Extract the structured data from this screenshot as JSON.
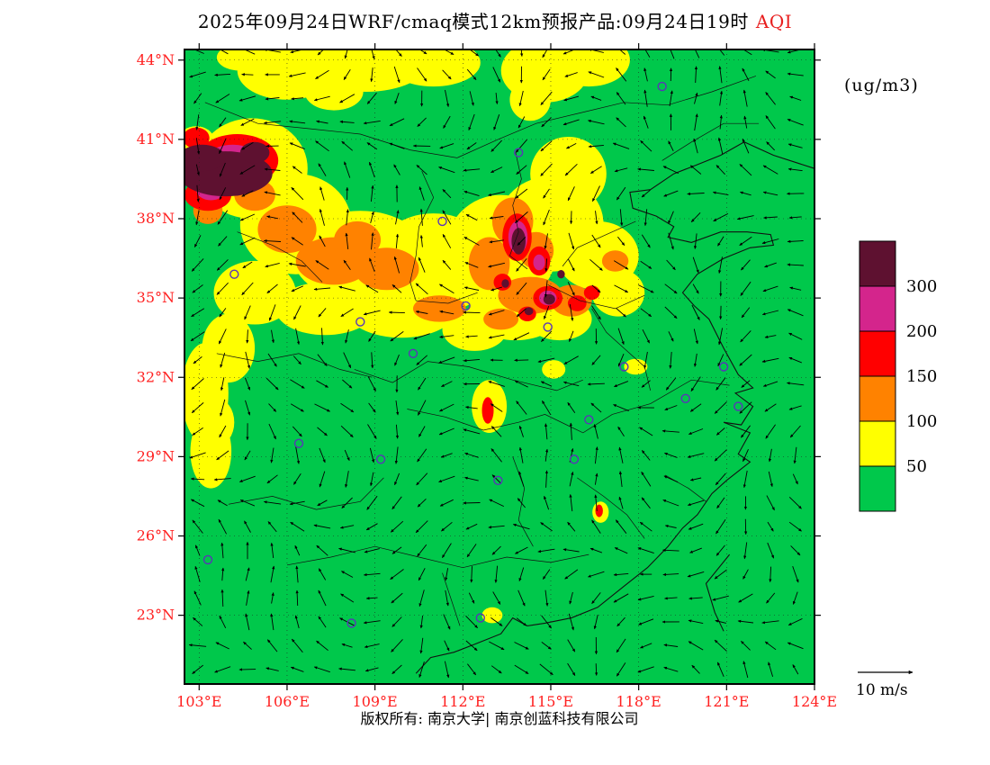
{
  "title": {
    "main": "2025年09月24日WRF/cmaq模式12km预报产品:09月24日19时",
    "highlight": "AQI"
  },
  "units_label": "(ug/m3)",
  "footer": "版权所有: 南京大学| 南京创蓝科技有限公司",
  "chart_data": {
    "type": "heatmap",
    "title": "2025年09月24日WRF/cmaq模式12km预报产品:09月24日19时 AQI",
    "variable": "AQI",
    "units": "ug/m3",
    "run_date": "2025年09月24日",
    "valid_time": "09月24日19时",
    "model": "WRF/cmaq 12km",
    "lon_range": [
      102.5,
      124.0
    ],
    "lat_range": [
      20.4,
      44.4
    ],
    "lon_ticks": [
      {
        "label": "103°E",
        "value": 103
      },
      {
        "label": "106°E",
        "value": 106
      },
      {
        "label": "109°E",
        "value": 109
      },
      {
        "label": "112°E",
        "value": 112
      },
      {
        "label": "115°E",
        "value": 115
      },
      {
        "label": "118°E",
        "value": 118
      },
      {
        "label": "121°E",
        "value": 121
      },
      {
        "label": "124°E",
        "value": 124
      }
    ],
    "lat_ticks": [
      {
        "label": "44°N",
        "value": 44
      },
      {
        "label": "41°N",
        "value": 41
      },
      {
        "label": "38°N",
        "value": 38
      },
      {
        "label": "35°N",
        "value": 35
      },
      {
        "label": "32°N",
        "value": 32
      },
      {
        "label": "29°N",
        "value": 29
      },
      {
        "label": "26°N",
        "value": 26
      },
      {
        "label": "23°N",
        "value": 23
      }
    ],
    "tick_color": "#FF2020",
    "station_color": "#5A35B8",
    "legend": {
      "title": "(ug/m3)",
      "levels": [
        300,
        200,
        150,
        100,
        50
      ],
      "bins": [
        {
          "min": 300,
          "color": "#5E1130"
        },
        {
          "min": 200,
          "color": "#D4258C"
        },
        {
          "min": 150,
          "color": "#FF0000"
        },
        {
          "min": 100,
          "color": "#FF8200"
        },
        {
          "min": 50,
          "color": "#FFFF00"
        },
        {
          "min": 0,
          "color": "#00C84B"
        }
      ]
    },
    "regions": [
      [
        106.0,
        43.6,
        1.7,
        1.1,
        50
      ],
      [
        108.7,
        43.9,
        2.1,
        1.1,
        50
      ],
      [
        111.0,
        43.9,
        1.6,
        0.9,
        50
      ],
      [
        107.6,
        42.8,
        1.0,
        0.7,
        50
      ],
      [
        104.4,
        44.1,
        0.8,
        0.5,
        50
      ],
      [
        114.8,
        43.6,
        1.5,
        1.2,
        50
      ],
      [
        116.3,
        44.0,
        1.4,
        1.0,
        50
      ],
      [
        114.3,
        42.5,
        0.7,
        0.8,
        50
      ],
      [
        104.8,
        39.9,
        1.9,
        1.9,
        50
      ],
      [
        106.3,
        37.8,
        1.9,
        1.9,
        50
      ],
      [
        108.5,
        36.6,
        2.3,
        1.7,
        50
      ],
      [
        111.0,
        36.3,
        2.1,
        1.9,
        50
      ],
      [
        113.3,
        36.8,
        1.9,
        2.1,
        50
      ],
      [
        115.0,
        37.8,
        1.8,
        1.8,
        50
      ],
      [
        115.6,
        39.7,
        1.3,
        1.4,
        50
      ],
      [
        116.6,
        36.6,
        1.4,
        1.3,
        50
      ],
      [
        117.3,
        35.2,
        0.9,
        0.9,
        50
      ],
      [
        109.9,
        34.6,
        1.9,
        1.1,
        50
      ],
      [
        107.3,
        34.6,
        1.7,
        1.0,
        50
      ],
      [
        104.9,
        35.2,
        1.4,
        1.2,
        50
      ],
      [
        113.8,
        34.5,
        1.6,
        1.1,
        50
      ],
      [
        115.3,
        34.2,
        1.1,
        0.8,
        50
      ],
      [
        112.4,
        33.8,
        1.1,
        0.8,
        50
      ],
      [
        104.0,
        33.1,
        0.9,
        1.3,
        50
      ],
      [
        103.2,
        31.4,
        0.8,
        1.9,
        50
      ],
      [
        103.4,
        29.2,
        0.7,
        1.4,
        50
      ],
      [
        103.6,
        30.3,
        0.6,
        0.9,
        50
      ],
      [
        102.9,
        41.0,
        0.6,
        0.5,
        50
      ],
      [
        112.9,
        30.9,
        0.6,
        1.0,
        50
      ],
      [
        115.1,
        32.3,
        0.4,
        0.35,
        50
      ],
      [
        117.9,
        32.4,
        0.4,
        0.3,
        50
      ],
      [
        116.7,
        26.9,
        0.28,
        0.4,
        50
      ],
      [
        113.0,
        23.0,
        0.35,
        0.3,
        50
      ],
      [
        111.9,
        39.95,
        1.0,
        0.75,
        0
      ],
      [
        106.0,
        37.6,
        1.0,
        0.9,
        100
      ],
      [
        107.6,
        36.4,
        1.3,
        0.9,
        100
      ],
      [
        109.4,
        36.1,
        1.1,
        0.8,
        100
      ],
      [
        108.4,
        37.2,
        0.8,
        0.7,
        100
      ],
      [
        112.9,
        36.3,
        0.7,
        1.0,
        100
      ],
      [
        113.7,
        37.9,
        0.7,
        0.9,
        100
      ],
      [
        114.5,
        36.8,
        0.6,
        0.7,
        100
      ],
      [
        114.3,
        35.1,
        1.1,
        0.7,
        100
      ],
      [
        115.7,
        34.9,
        0.7,
        0.6,
        100
      ],
      [
        111.2,
        34.6,
        0.9,
        0.5,
        100
      ],
      [
        104.9,
        38.9,
        0.7,
        0.6,
        100
      ],
      [
        113.3,
        34.2,
        0.6,
        0.4,
        100
      ],
      [
        103.3,
        38.3,
        0.5,
        0.5,
        100
      ],
      [
        117.2,
        36.4,
        0.45,
        0.4,
        100
      ],
      [
        104.3,
        40.2,
        1.4,
        1.0,
        150
      ],
      [
        103.3,
        38.9,
        0.8,
        0.6,
        150
      ],
      [
        102.9,
        41.05,
        0.45,
        0.4,
        150
      ],
      [
        113.85,
        37.3,
        0.5,
        0.9,
        150
      ],
      [
        114.6,
        36.4,
        0.38,
        0.55,
        150
      ],
      [
        113.35,
        35.6,
        0.3,
        0.32,
        150
      ],
      [
        114.9,
        35.0,
        0.5,
        0.45,
        150
      ],
      [
        115.9,
        34.8,
        0.32,
        0.3,
        150
      ],
      [
        114.2,
        34.4,
        0.3,
        0.28,
        150
      ],
      [
        116.4,
        35.2,
        0.27,
        0.27,
        150
      ],
      [
        112.85,
        30.75,
        0.2,
        0.5,
        150
      ],
      [
        116.65,
        26.95,
        0.13,
        0.24,
        150
      ],
      [
        104.15,
        40.2,
        0.95,
        0.6,
        200
      ],
      [
        103.4,
        39.1,
        0.5,
        0.4,
        200
      ],
      [
        113.88,
        37.3,
        0.33,
        0.62,
        200
      ],
      [
        114.9,
        35.0,
        0.3,
        0.28,
        200
      ],
      [
        114.6,
        36.35,
        0.2,
        0.3,
        200
      ],
      [
        103.9,
        39.7,
        1.6,
        0.85,
        300
      ],
      [
        103.1,
        40.3,
        0.8,
        0.5,
        300
      ],
      [
        104.9,
        40.5,
        0.5,
        0.4,
        300
      ],
      [
        113.9,
        37.15,
        0.24,
        0.5,
        300
      ],
      [
        114.95,
        34.95,
        0.2,
        0.2,
        300
      ],
      [
        114.25,
        34.5,
        0.15,
        0.15,
        300
      ],
      [
        113.45,
        35.55,
        0.13,
        0.16,
        300
      ],
      [
        115.35,
        35.9,
        0.13,
        0.16,
        300
      ]
    ],
    "stations": [
      [
        118.8,
        43.0
      ],
      [
        113.9,
        40.5
      ],
      [
        111.3,
        37.9
      ],
      [
        104.2,
        35.9
      ],
      [
        108.5,
        34.1
      ],
      [
        112.1,
        34.7
      ],
      [
        114.9,
        33.9
      ],
      [
        117.5,
        32.4
      ],
      [
        120.9,
        32.4
      ],
      [
        119.6,
        31.2
      ],
      [
        106.4,
        29.5
      ],
      [
        109.2,
        28.9
      ],
      [
        113.2,
        28.1
      ],
      [
        115.8,
        28.9
      ],
      [
        121.4,
        30.9
      ],
      [
        112.6,
        22.9
      ],
      [
        108.2,
        22.7
      ],
      [
        110.3,
        32.9
      ],
      [
        116.3,
        30.4
      ],
      [
        103.3,
        25.1
      ]
    ],
    "coastlines": [
      [
        [
          124,
          39.9
        ],
        [
          122.6,
          40.4
        ],
        [
          121.6,
          40.9
        ],
        [
          120.8,
          40.4
        ],
        [
          119.9,
          40.0
        ],
        [
          119.2,
          39.7
        ],
        [
          118.4,
          39.1
        ],
        [
          117.7,
          39.0
        ],
        [
          117.8,
          38.4
        ],
        [
          118.6,
          38.1
        ],
        [
          119.2,
          37.7
        ],
        [
          119.0,
          37.3
        ],
        [
          119.8,
          37.1
        ],
        [
          120.8,
          37.5
        ],
        [
          121.7,
          37.5
        ],
        [
          122.5,
          37.4
        ],
        [
          122.6,
          37.0
        ],
        [
          121.8,
          36.9
        ],
        [
          120.9,
          36.5
        ],
        [
          120.0,
          35.9
        ],
        [
          119.5,
          35.2
        ],
        [
          119.9,
          34.7
        ],
        [
          120.4,
          34.2
        ],
        [
          120.9,
          33.1
        ],
        [
          121.4,
          32.1
        ],
        [
          121.9,
          31.6
        ],
        [
          121.3,
          31.4
        ],
        [
          121.9,
          30.9
        ],
        [
          121.5,
          30.2
        ],
        [
          120.9,
          30.3
        ],
        [
          121.8,
          29.9
        ],
        [
          121.4,
          29.1
        ],
        [
          121.8,
          28.8
        ],
        [
          121.0,
          28.1
        ],
        [
          120.5,
          27.6
        ],
        [
          120.0,
          26.8
        ],
        [
          119.5,
          26.3
        ],
        [
          119.0,
          25.6
        ],
        [
          118.3,
          24.8
        ],
        [
          117.5,
          24.1
        ],
        [
          116.6,
          23.3
        ],
        [
          115.7,
          22.9
        ],
        [
          114.8,
          22.7
        ],
        [
          114.2,
          22.6
        ],
        [
          113.7,
          22.9
        ],
        [
          113.3,
          22.3
        ],
        [
          112.4,
          21.9
        ],
        [
          111.7,
          21.6
        ],
        [
          110.9,
          21.4
        ],
        [
          110.4,
          20.8
        ]
      ],
      [
        [
          121.1,
          25.3
        ],
        [
          120.3,
          24.2
        ],
        [
          120.6,
          23.1
        ],
        [
          120.9,
          22.4
        ]
      ]
    ],
    "borders": [
      [
        [
          103.2,
          42.4
        ],
        [
          105.0,
          41.6
        ],
        [
          106.8,
          41.4
        ],
        [
          108.5,
          41.2
        ],
        [
          110.2,
          40.6
        ],
        [
          111.8,
          40.3
        ],
        [
          113.2,
          41.0
        ],
        [
          114.5,
          41.6
        ],
        [
          116.0,
          42.0
        ],
        [
          117.5,
          42.4
        ],
        [
          119.0,
          42.3
        ],
        [
          120.5,
          42.8
        ],
        [
          122.0,
          43.4
        ]
      ],
      [
        [
          110.6,
          39.8
        ],
        [
          111.0,
          38.8
        ],
        [
          110.5,
          37.7
        ],
        [
          110.4,
          36.6
        ],
        [
          110.2,
          35.6
        ],
        [
          110.4,
          34.9
        ],
        [
          111.5,
          34.8
        ],
        [
          112.5,
          35.2
        ]
      ],
      [
        [
          113.8,
          40.5
        ],
        [
          114.0,
          39.5
        ],
        [
          113.7,
          38.5
        ],
        [
          113.9,
          37.5
        ],
        [
          113.6,
          36.6
        ],
        [
          114.2,
          36.1
        ]
      ],
      [
        [
          115.4,
          36.2
        ],
        [
          115.9,
          36.9
        ],
        [
          116.9,
          37.4
        ],
        [
          117.9,
          37.9
        ]
      ],
      [
        [
          114.9,
          35.5
        ],
        [
          116.0,
          34.9
        ],
        [
          117.2,
          34.6
        ],
        [
          118.2,
          35.1
        ]
      ],
      [
        [
          108.3,
          32.3
        ],
        [
          109.6,
          31.8
        ],
        [
          110.8,
          32.6
        ],
        [
          112.2,
          32.4
        ],
        [
          113.7,
          31.9
        ],
        [
          115.2,
          31.5
        ],
        [
          116.1,
          31.9
        ]
      ],
      [
        [
          110.1,
          30.8
        ],
        [
          111.4,
          30.5
        ],
        [
          112.7,
          30.0
        ],
        [
          113.9,
          30.3
        ],
        [
          114.8,
          30.6
        ],
        [
          116.1,
          29.9
        ],
        [
          117.1,
          30.6
        ],
        [
          118.4,
          31.0
        ],
        [
          119.8,
          31.9
        ],
        [
          121.1,
          31.7
        ]
      ],
      [
        [
          106.0,
          24.9
        ],
        [
          107.5,
          25.2
        ],
        [
          109.0,
          25.6
        ],
        [
          110.5,
          25.2
        ],
        [
          112.0,
          24.8
        ],
        [
          113.5,
          25.2
        ],
        [
          115.0,
          25.0
        ],
        [
          116.3,
          25.3
        ]
      ],
      [
        [
          115.9,
          28.2
        ],
        [
          116.8,
          27.5
        ],
        [
          117.6,
          26.8
        ],
        [
          118.2,
          25.9
        ]
      ],
      [
        [
          104.0,
          27.2
        ],
        [
          105.5,
          27.5
        ],
        [
          107.0,
          27.0
        ],
        [
          108.5,
          27.3
        ],
        [
          109.3,
          28.2
        ]
      ],
      [
        [
          103.6,
          32.9
        ],
        [
          105.0,
          32.6
        ],
        [
          106.4,
          32.9
        ],
        [
          107.8,
          32.3
        ],
        [
          108.9,
          32.0
        ]
      ],
      [
        [
          113.7,
          29.0
        ],
        [
          114.1,
          27.8
        ],
        [
          113.9,
          26.6
        ],
        [
          114.4,
          25.6
        ]
      ],
      [
        [
          116.4,
          34.6
        ],
        [
          116.9,
          33.7
        ],
        [
          117.6,
          33.0
        ],
        [
          118.2,
          32.4
        ],
        [
          118.4,
          31.5
        ]
      ],
      [
        [
          104.3,
          37.5
        ],
        [
          105.5,
          37.0
        ],
        [
          106.5,
          36.4
        ],
        [
          107.2,
          35.6
        ]
      ],
      [
        [
          111.3,
          24.6
        ],
        [
          111.6,
          23.6
        ],
        [
          111.9,
          22.6
        ]
      ],
      [
        [
          118.9,
          28.3
        ],
        [
          119.7,
          27.8
        ],
        [
          120.3,
          27.3
        ]
      ],
      [
        [
          118.8,
          40.2
        ],
        [
          119.8,
          40.9
        ],
        [
          120.9,
          41.6
        ],
        [
          122.1,
          41.6
        ]
      ]
    ],
    "wind": {
      "reference_label": "10 m/s",
      "dlon": 0.85,
      "dlat": 0.9,
      "base": 205,
      "a1": 75,
      "k1lon": 0.45,
      "k1lat": 0.32,
      "a2": 55,
      "k2lon": -0.21,
      "k2lat": 0.52,
      "len_base": 12,
      "len_amp": 7,
      "klen_lon": 0.9,
      "klen_lat": 1.3
    }
  }
}
